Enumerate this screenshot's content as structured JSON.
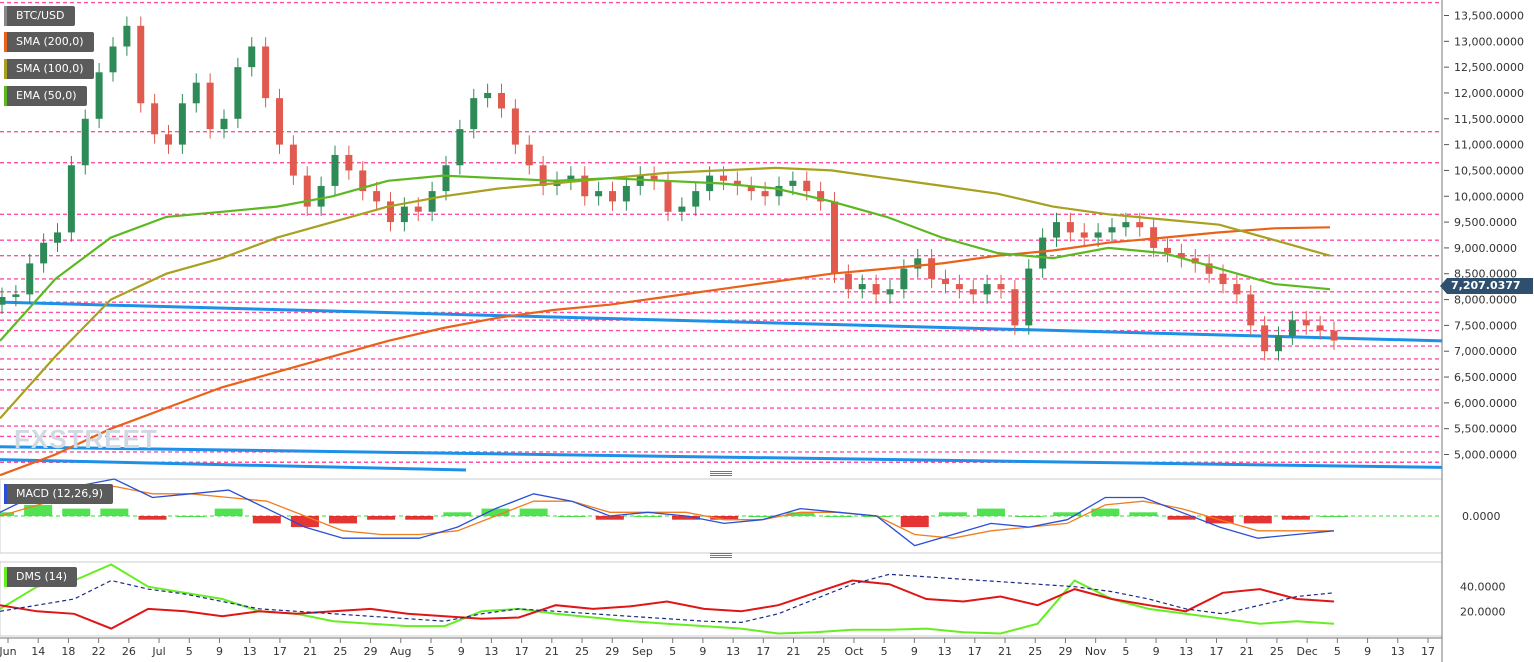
{
  "legend": {
    "symbol": "BTC/USD",
    "sma200": "SMA (200,0)",
    "sma100": "SMA (100,0)",
    "ema50": "EMA (50,0)",
    "macd": "MACD (12,26,9)",
    "dms": "DMS (14)"
  },
  "colors": {
    "up_candle": "#2e8b57",
    "down_candle": "#e05a4f",
    "sma200": "#e8621a",
    "sma100": "#a8a020",
    "ema50": "#5cb820",
    "trendline": "#1e90e8",
    "level_line": "#ff4fa0",
    "macd_line": "#2a4fd6",
    "signal_line": "#f07d20",
    "hist_pos": "#33dd33",
    "hist_neg": "#e01010",
    "dms_plus": "#66ee22",
    "dms_minus": "#e01515",
    "adx": "#1a2a88"
  },
  "watermark": "FXSTREET",
  "current_price_label": "7,207.0377",
  "chart_data": [
    {
      "type": "candlestick",
      "title": "BTC/USD",
      "y_ticks": [
        "13,500.0000",
        "13,000.0000",
        "12,500.0000",
        "12,000.0000",
        "11,500.0000",
        "11,000.0000",
        "10,500.0000",
        "10,000.0000",
        "9,500.0000",
        "9,000.0000",
        "8,500.0000",
        "8,000.0000",
        "7,500.0000",
        "7,000.0000",
        "6,500.0000",
        "6,000.0000",
        "5,500.0000",
        "5,000.0000"
      ],
      "y_tick_values": [
        13500,
        13000,
        12500,
        12000,
        11500,
        11000,
        10500,
        10000,
        9500,
        9000,
        8500,
        8000,
        7500,
        7000,
        6500,
        6000,
        5500,
        5000
      ],
      "x_ticks": [
        "Jun",
        "14",
        "18",
        "22",
        "26",
        "Jul",
        "5",
        "9",
        "13",
        "17",
        "21",
        "25",
        "29",
        "Aug",
        "5",
        "9",
        "13",
        "17",
        "21",
        "25",
        "29",
        "Sep",
        "5",
        "9",
        "13",
        "17",
        "21",
        "25",
        "Oct",
        "5",
        "9",
        "13",
        "17",
        "21",
        "25",
        "29",
        "Nov",
        "5",
        "9",
        "13",
        "17",
        "21",
        "25",
        "Dec",
        "5",
        "9",
        "13",
        "17"
      ],
      "ylim": [
        4700,
        13800
      ],
      "last_price": 7207.0377,
      "close_series": [
        8050,
        8100,
        8700,
        9100,
        9300,
        10600,
        11500,
        12400,
        12900,
        13300,
        11800,
        11200,
        11000,
        11800,
        12200,
        11300,
        11500,
        12500,
        12900,
        11900,
        11000,
        10400,
        9800,
        10200,
        10800,
        10500,
        10100,
        9900,
        9500,
        9800,
        9700,
        10100,
        10600,
        11300,
        11900,
        12000,
        11700,
        11000,
        10600,
        10200,
        10300,
        10400,
        10000,
        10100,
        9900,
        10200,
        10400,
        10300,
        9700,
        9800,
        10100,
        10400,
        10300,
        10200,
        10100,
        10000,
        10200,
        10300,
        10100,
        9900,
        8500,
        8200,
        8300,
        8100,
        8200,
        8600,
        8800,
        8400,
        8300,
        8200,
        8100,
        8300,
        8200,
        7500,
        8600,
        9200,
        9500,
        9300,
        9200,
        9300,
        9400,
        9500,
        9400,
        9000,
        8900,
        8800,
        8700,
        8500,
        8300,
        8100,
        7500,
        7000,
        7300,
        7600,
        7500,
        7400,
        7207
      ],
      "sma200_series": [
        4600,
        5000,
        5500,
        5900,
        6300,
        6600,
        6900,
        7200,
        7450,
        7650,
        7800,
        7900,
        8050,
        8200,
        8350,
        8500,
        8600,
        8700,
        8850,
        8950,
        9100,
        9200,
        9300,
        9380,
        9400
      ],
      "sma100_series": [
        5700,
        6900,
        8000,
        8500,
        8800,
        9200,
        9500,
        9800,
        10000,
        10150,
        10250,
        10350,
        10450,
        10500,
        10550,
        10500,
        10350,
        10200,
        10050,
        9800,
        9650,
        9550,
        9450,
        9150,
        8850
      ],
      "ema50_series": [
        7200,
        8400,
        9200,
        9600,
        9700,
        9800,
        10000,
        10300,
        10400,
        10350,
        10300,
        10350,
        10300,
        10250,
        10150,
        9900,
        9600,
        9200,
        8900,
        8800,
        9000,
        8900,
        8600,
        8300,
        8200
      ],
      "trendlines": [
        {
          "name": "upper",
          "from": {
            "x": "Jun 10",
            "y": 7950
          },
          "to": {
            "x": "Dec 20",
            "y": 7200
          }
        },
        {
          "name": "lower",
          "from": {
            "x": "Jun 10",
            "y": 5150
          },
          "to": {
            "x": "Dec 20",
            "y": 4750
          }
        },
        {
          "name": "short",
          "from": {
            "x": "Jun 10",
            "y": 4900
          },
          "to": {
            "x": "Aug 9",
            "y": 4700
          }
        }
      ],
      "levels": [
        13750,
        11250,
        10650,
        9650,
        9150,
        8850,
        8400,
        8150,
        7950,
        7750,
        7600,
        7400,
        7100,
        6850,
        6650,
        6450,
        6250,
        5900,
        5550,
        5350,
        5050,
        4850
      ]
    },
    {
      "type": "macd",
      "title": "MACD (12,26,9)",
      "y_ticks": [
        "0.0000"
      ],
      "y_tick_values": [
        0
      ],
      "ylim": [
        -1,
        1
      ],
      "macd_series": [
        0.1,
        0.6,
        0.8,
        1.0,
        0.5,
        0.6,
        0.7,
        0.2,
        -0.3,
        -0.6,
        -0.6,
        -0.6,
        -0.3,
        0.2,
        0.6,
        0.4,
        0.0,
        0.1,
        0.0,
        -0.2,
        -0.1,
        0.2,
        0.1,
        0.0,
        -0.8,
        -0.5,
        -0.2,
        -0.3,
        -0.1,
        0.5,
        0.5,
        0.1,
        -0.3,
        -0.6,
        -0.5,
        -0.4
      ],
      "signal_series": [
        0.0,
        0.3,
        0.6,
        0.8,
        0.6,
        0.6,
        0.5,
        0.4,
        0.0,
        -0.4,
        -0.5,
        -0.5,
        -0.4,
        0.0,
        0.4,
        0.4,
        0.1,
        0.1,
        0.1,
        -0.1,
        -0.1,
        0.1,
        0.1,
        0.0,
        -0.5,
        -0.6,
        -0.4,
        -0.3,
        -0.2,
        0.3,
        0.4,
        0.2,
        -0.1,
        -0.4,
        -0.4,
        -0.4
      ],
      "histogram": [
        0.1,
        0.3,
        0.2,
        0.2,
        -0.1,
        0.0,
        0.2,
        -0.2,
        -0.3,
        -0.2,
        -0.1,
        -0.1,
        0.1,
        0.2,
        0.2,
        0.0,
        -0.1,
        0.0,
        -0.1,
        -0.1,
        0.0,
        0.1,
        0.0,
        0.0,
        -0.3,
        0.1,
        0.2,
        0.0,
        0.1,
        0.2,
        0.1,
        -0.1,
        -0.2,
        -0.2,
        -0.1,
        0.0
      ]
    },
    {
      "type": "line",
      "title": "DMS (14)",
      "y_ticks": [
        "40.0000",
        "20.0000"
      ],
      "y_tick_values": [
        40,
        20
      ],
      "ylim": [
        0,
        60
      ],
      "series": [
        {
          "name": "+DI",
          "values": [
            22,
            40,
            45,
            58,
            40,
            35,
            30,
            20,
            18,
            12,
            10,
            8,
            8,
            20,
            22,
            18,
            15,
            12,
            10,
            8,
            6,
            2,
            3,
            5,
            5,
            6,
            3,
            2,
            10,
            45,
            30,
            22,
            18,
            14,
            10,
            12,
            10
          ]
        },
        {
          "name": "-DI",
          "values": [
            25,
            20,
            18,
            6,
            22,
            20,
            16,
            20,
            18,
            20,
            22,
            18,
            16,
            14,
            15,
            25,
            22,
            24,
            28,
            22,
            20,
            25,
            35,
            45,
            42,
            30,
            28,
            32,
            25,
            38,
            30,
            25,
            20,
            35,
            38,
            30,
            28
          ]
        },
        {
          "name": "ADX",
          "values": [
            20,
            25,
            30,
            45,
            38,
            34,
            28,
            22,
            20,
            18,
            16,
            14,
            12,
            18,
            22,
            20,
            18,
            16,
            14,
            12,
            11,
            18,
            30,
            42,
            50,
            48,
            46,
            44,
            42,
            40,
            36,
            30,
            22,
            18,
            25,
            32,
            35
          ]
        }
      ]
    }
  ]
}
